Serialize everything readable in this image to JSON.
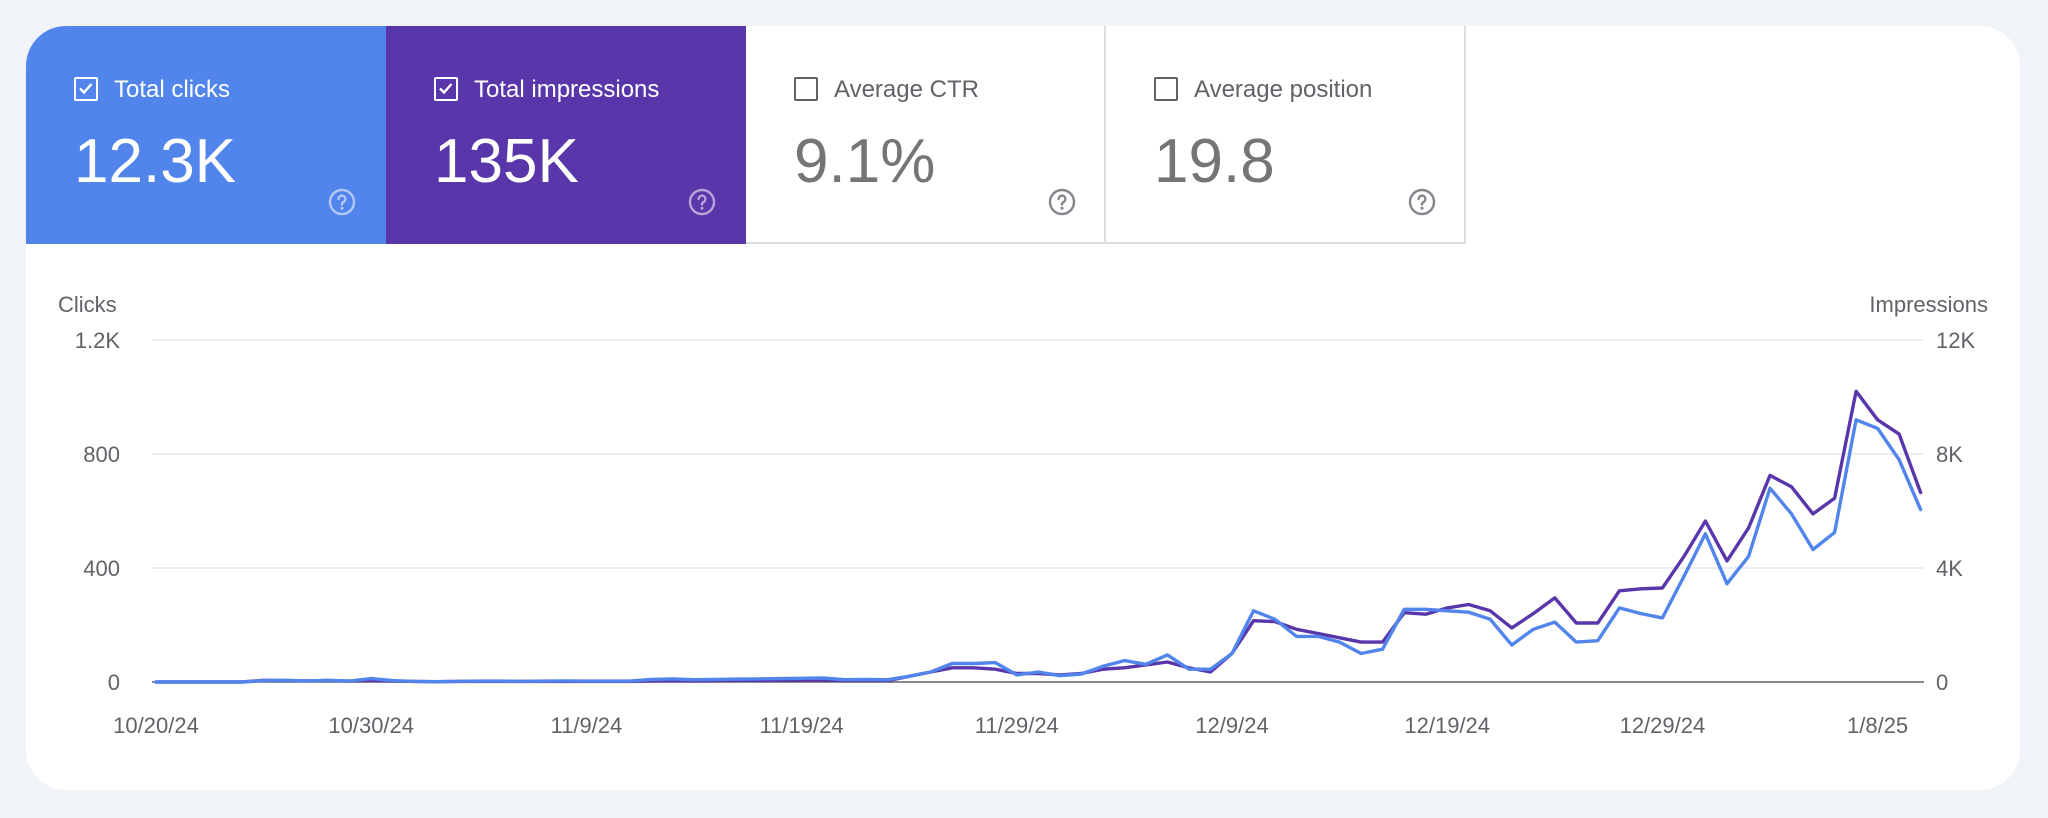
{
  "metrics": [
    {
      "label": "Total clicks",
      "value": "12.3K",
      "checked": true,
      "color": "#5285ec",
      "icon": "help-circle-icon"
    },
    {
      "label": "Total impressions",
      "value": "135K",
      "checked": true,
      "color": "#5936aa",
      "icon": "help-circle-icon"
    },
    {
      "label": "Average CTR",
      "value": "9.1%",
      "checked": false,
      "color": "#ffffff",
      "icon": "help-circle-icon"
    },
    {
      "label": "Average position",
      "value": "19.8",
      "checked": false,
      "color": "#ffffff",
      "icon": "help-circle-icon"
    }
  ],
  "chart_data": {
    "type": "line",
    "y_left_label": "Clicks",
    "y_right_label": "Impressions",
    "y_left_ticks": [
      "0",
      "400",
      "800",
      "1.2K"
    ],
    "y_right_ticks": [
      "0",
      "4K",
      "8K",
      "12K"
    ],
    "y_left_range": [
      0,
      1200
    ],
    "y_right_range": [
      0,
      12000
    ],
    "x_tick_labels": [
      "10/20/24",
      "10/30/24",
      "11/9/24",
      "11/19/24",
      "11/29/24",
      "12/9/24",
      "12/19/24",
      "12/29/24",
      "1/8/25"
    ],
    "x_tick_days": [
      0,
      10,
      20,
      30,
      40,
      50,
      60,
      70,
      80
    ],
    "grid": true,
    "series": [
      {
        "name": "Total clicks",
        "axis": "left",
        "color": "#5285ec",
        "values": [
          0,
          0,
          0,
          0,
          0,
          5,
          6,
          4,
          6,
          3,
          12,
          5,
          2,
          1,
          2,
          3,
          3,
          2,
          3,
          4,
          3,
          3,
          3,
          9,
          11,
          8,
          9,
          10,
          11,
          12,
          13,
          14,
          8,
          9,
          8,
          20,
          35,
          65,
          65,
          68,
          25,
          35,
          22,
          28,
          55,
          75,
          62,
          95,
          45,
          45,
          100,
          250,
          220,
          160,
          160,
          140,
          100,
          115,
          255,
          255,
          250,
          245,
          220,
          130,
          185,
          210,
          140,
          145,
          260,
          240,
          225,
          370,
          520,
          345,
          440,
          680,
          590,
          465,
          525,
          920,
          890,
          780,
          605
        ],
        "unit": "clicks"
      },
      {
        "name": "Total impressions",
        "axis": "right",
        "color": "#5936aa",
        "values": [
          0,
          0,
          0,
          0,
          0,
          60,
          50,
          40,
          50,
          30,
          60,
          30,
          20,
          10,
          20,
          20,
          20,
          20,
          20,
          20,
          20,
          20,
          20,
          40,
          50,
          40,
          50,
          60,
          60,
          60,
          70,
          70,
          50,
          60,
          50,
          200,
          350,
          500,
          500,
          450,
          300,
          300,
          250,
          300,
          450,
          500,
          600,
          700,
          500,
          350,
          1000,
          2150,
          2120,
          1850,
          1700,
          1550,
          1400,
          1400,
          2430,
          2380,
          2600,
          2720,
          2500,
          1900,
          2400,
          2950,
          2070,
          2070,
          3200,
          3270,
          3300,
          4400,
          5650,
          4250,
          5400,
          7250,
          6850,
          5900,
          6450,
          10200,
          9200,
          8700,
          6650
        ],
        "unit": "impressions"
      }
    ]
  }
}
